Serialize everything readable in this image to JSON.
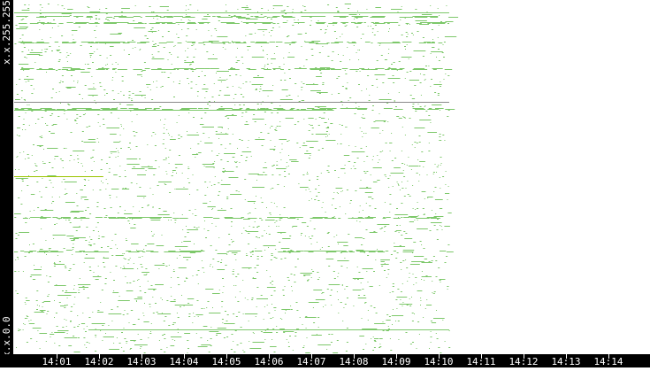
{
  "chart_data": {
    "type": "scatter",
    "title": "",
    "xlabel": "",
    "ylabel": "",
    "y_tick_labels": {
      "top": "x.x.255.255",
      "bottom": "x.x.0.0"
    },
    "ylim": [
      0,
      65535
    ],
    "xlim": [
      "14:00:00",
      "14:14:30"
    ],
    "x_tick_labels": [
      "14:01",
      "14:02",
      "14:03",
      "14:04",
      "14:05",
      "14:06",
      "14:07",
      "14:08",
      "14:09",
      "14:10",
      "14:11",
      "14:12",
      "14:13",
      "14:14"
    ],
    "data_end_time": "14:10:15",
    "grid": false,
    "colors": {
      "point": "#7dc86a",
      "dense_line": "#8a8a8a",
      "highlight_line": "#9bc400",
      "axis_bg": "#000000",
      "axis_text": "#ffffff"
    },
    "segments": [
      {
        "address": 63720,
        "start": "14:00:00",
        "end": "14:10:15",
        "color": "#7dc86a"
      },
      {
        "address": 47050,
        "start": "14:00:00",
        "end": "14:10:15",
        "color": "#8a8a8a"
      },
      {
        "address": 45560,
        "start": "14:00:00",
        "end": "14:07:32",
        "color": "#7dc86a"
      },
      {
        "address": 33180,
        "start": "14:00:00",
        "end": "14:02:06",
        "color": "#9bc400"
      },
      {
        "address": 4620,
        "start": "14:01:45",
        "end": "14:10:15",
        "color": "#7dc86a"
      }
    ],
    "dense_bands": [
      63000,
      61900,
      58200,
      19310,
      25590,
      45900,
      53300
    ]
  }
}
